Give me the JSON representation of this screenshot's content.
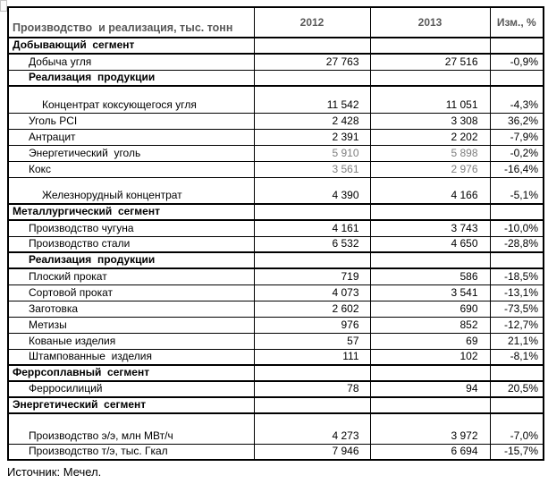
{
  "colors": {
    "header_text": "#595959",
    "muted_value": "#7f7f7f",
    "border": "#000000",
    "background": "#ffffff"
  },
  "source_note": "Источник: Мечел.",
  "chart_data": {
    "type": "table",
    "title": "Производство  и реализация, тыс. тонн",
    "columns": [
      "Производство  и реализация, тыс. тонн",
      "2012",
      "2013",
      "Изм., %"
    ],
    "rows": [
      {
        "label": "Добывающий  сегмент",
        "kind": "section",
        "indent": 0,
        "v2012": "",
        "v2013": "",
        "chg": ""
      },
      {
        "label": "Добыча угля",
        "kind": "data",
        "indent": 1,
        "v2012": "27 763",
        "v2013": "27 516",
        "chg": "-0,9%"
      },
      {
        "label": "Реализация  продукции",
        "kind": "subsection",
        "indent": 1,
        "v2012": "",
        "v2013": "",
        "chg": ""
      },
      {
        "label": "Концентрат коксующегося угля",
        "kind": "data",
        "indent": 2,
        "tall": 1,
        "v2012": "11 542",
        "v2013": "11 051",
        "chg": "-4,3%"
      },
      {
        "label": "Уголь PCI",
        "kind": "data",
        "indent": 1,
        "v2012": "2 428",
        "v2013": "3 308",
        "chg": "36,2%"
      },
      {
        "label": "Антрацит",
        "kind": "data",
        "indent": 1,
        "v2012": "2 391",
        "v2013": "2 202",
        "chg": "-7,9%"
      },
      {
        "label": "Энергетический  уголь",
        "kind": "data",
        "indent": 1,
        "muted": true,
        "v2012": "5 910",
        "v2013": "5 898",
        "chg": "-0,2%"
      },
      {
        "label": "Кокс",
        "kind": "data",
        "indent": 1,
        "muted": true,
        "v2012": "3 561",
        "v2013": "2 976",
        "chg": "-16,4%"
      },
      {
        "label": "Железнорудный концентрат",
        "kind": "data",
        "indent": 2,
        "tall": 1,
        "v2012": "4 390",
        "v2013": "4 166",
        "chg": "-5,1%"
      },
      {
        "label": "Металлургический  сегмент",
        "kind": "section",
        "indent": 0,
        "v2012": "",
        "v2013": "",
        "chg": ""
      },
      {
        "label": "Производство чугуна",
        "kind": "data",
        "indent": 1,
        "v2012": "4 161",
        "v2013": "3 743",
        "chg": "-10,0%"
      },
      {
        "label": "Производство стали",
        "kind": "data",
        "indent": 1,
        "v2012": "6 532",
        "v2013": "4 650",
        "chg": "-28,8%"
      },
      {
        "label": "Реализация  продукции",
        "kind": "subsection",
        "indent": 1,
        "thick_top": true,
        "v2012": "",
        "v2013": "",
        "chg": ""
      },
      {
        "label": "Плоский прокат",
        "kind": "data",
        "indent": 1,
        "v2012": "719",
        "v2013": "586",
        "chg": "-18,5%"
      },
      {
        "label": "Сортовой прокат",
        "kind": "data",
        "indent": 1,
        "v2012": "4 073",
        "v2013": "3 541",
        "chg": "-13,1%"
      },
      {
        "label": "Заготовка",
        "kind": "data",
        "indent": 1,
        "v2012": "2 602",
        "v2013": "690",
        "chg": "-73,5%"
      },
      {
        "label": "Метизы",
        "kind": "data",
        "indent": 1,
        "v2012": "976",
        "v2013": "852",
        "chg": "-12,7%"
      },
      {
        "label": "Кованые изделия",
        "kind": "data",
        "indent": 1,
        "v2012": "57",
        "v2013": "69",
        "chg": "21,1%"
      },
      {
        "label": "Штампованные  изделия",
        "kind": "data",
        "indent": 1,
        "v2012": "111",
        "v2013": "102",
        "chg": "-8,1%"
      },
      {
        "label": "Феррсоплавный  сегмент",
        "kind": "section",
        "indent": 0,
        "v2012": "",
        "v2013": "",
        "chg": ""
      },
      {
        "label": "Ферросилиций",
        "kind": "data",
        "indent": 1,
        "v2012": "78",
        "v2013": "94",
        "chg": "20,5%"
      },
      {
        "label": "Энергетический  сегмент",
        "kind": "section",
        "indent": 0,
        "v2012": "",
        "v2013": "",
        "chg": ""
      },
      {
        "label": "Производство э/э, млн МВт/ч",
        "kind": "data",
        "indent": 1,
        "tall": 2,
        "v2012": "4 273",
        "v2013": "3 972",
        "chg": "-7,0%"
      },
      {
        "label": "Производство т/э, тыс. Гкал",
        "kind": "data",
        "indent": 1,
        "v2012": "7 946",
        "v2013": "6 694",
        "chg": "-15,7%"
      }
    ],
    "source": "Источник: Мечел.",
    "notes": "Grey (muted) 2012/2013 values on rows Энергетический уголь and Кокс; bold section rows have thick borders."
  }
}
